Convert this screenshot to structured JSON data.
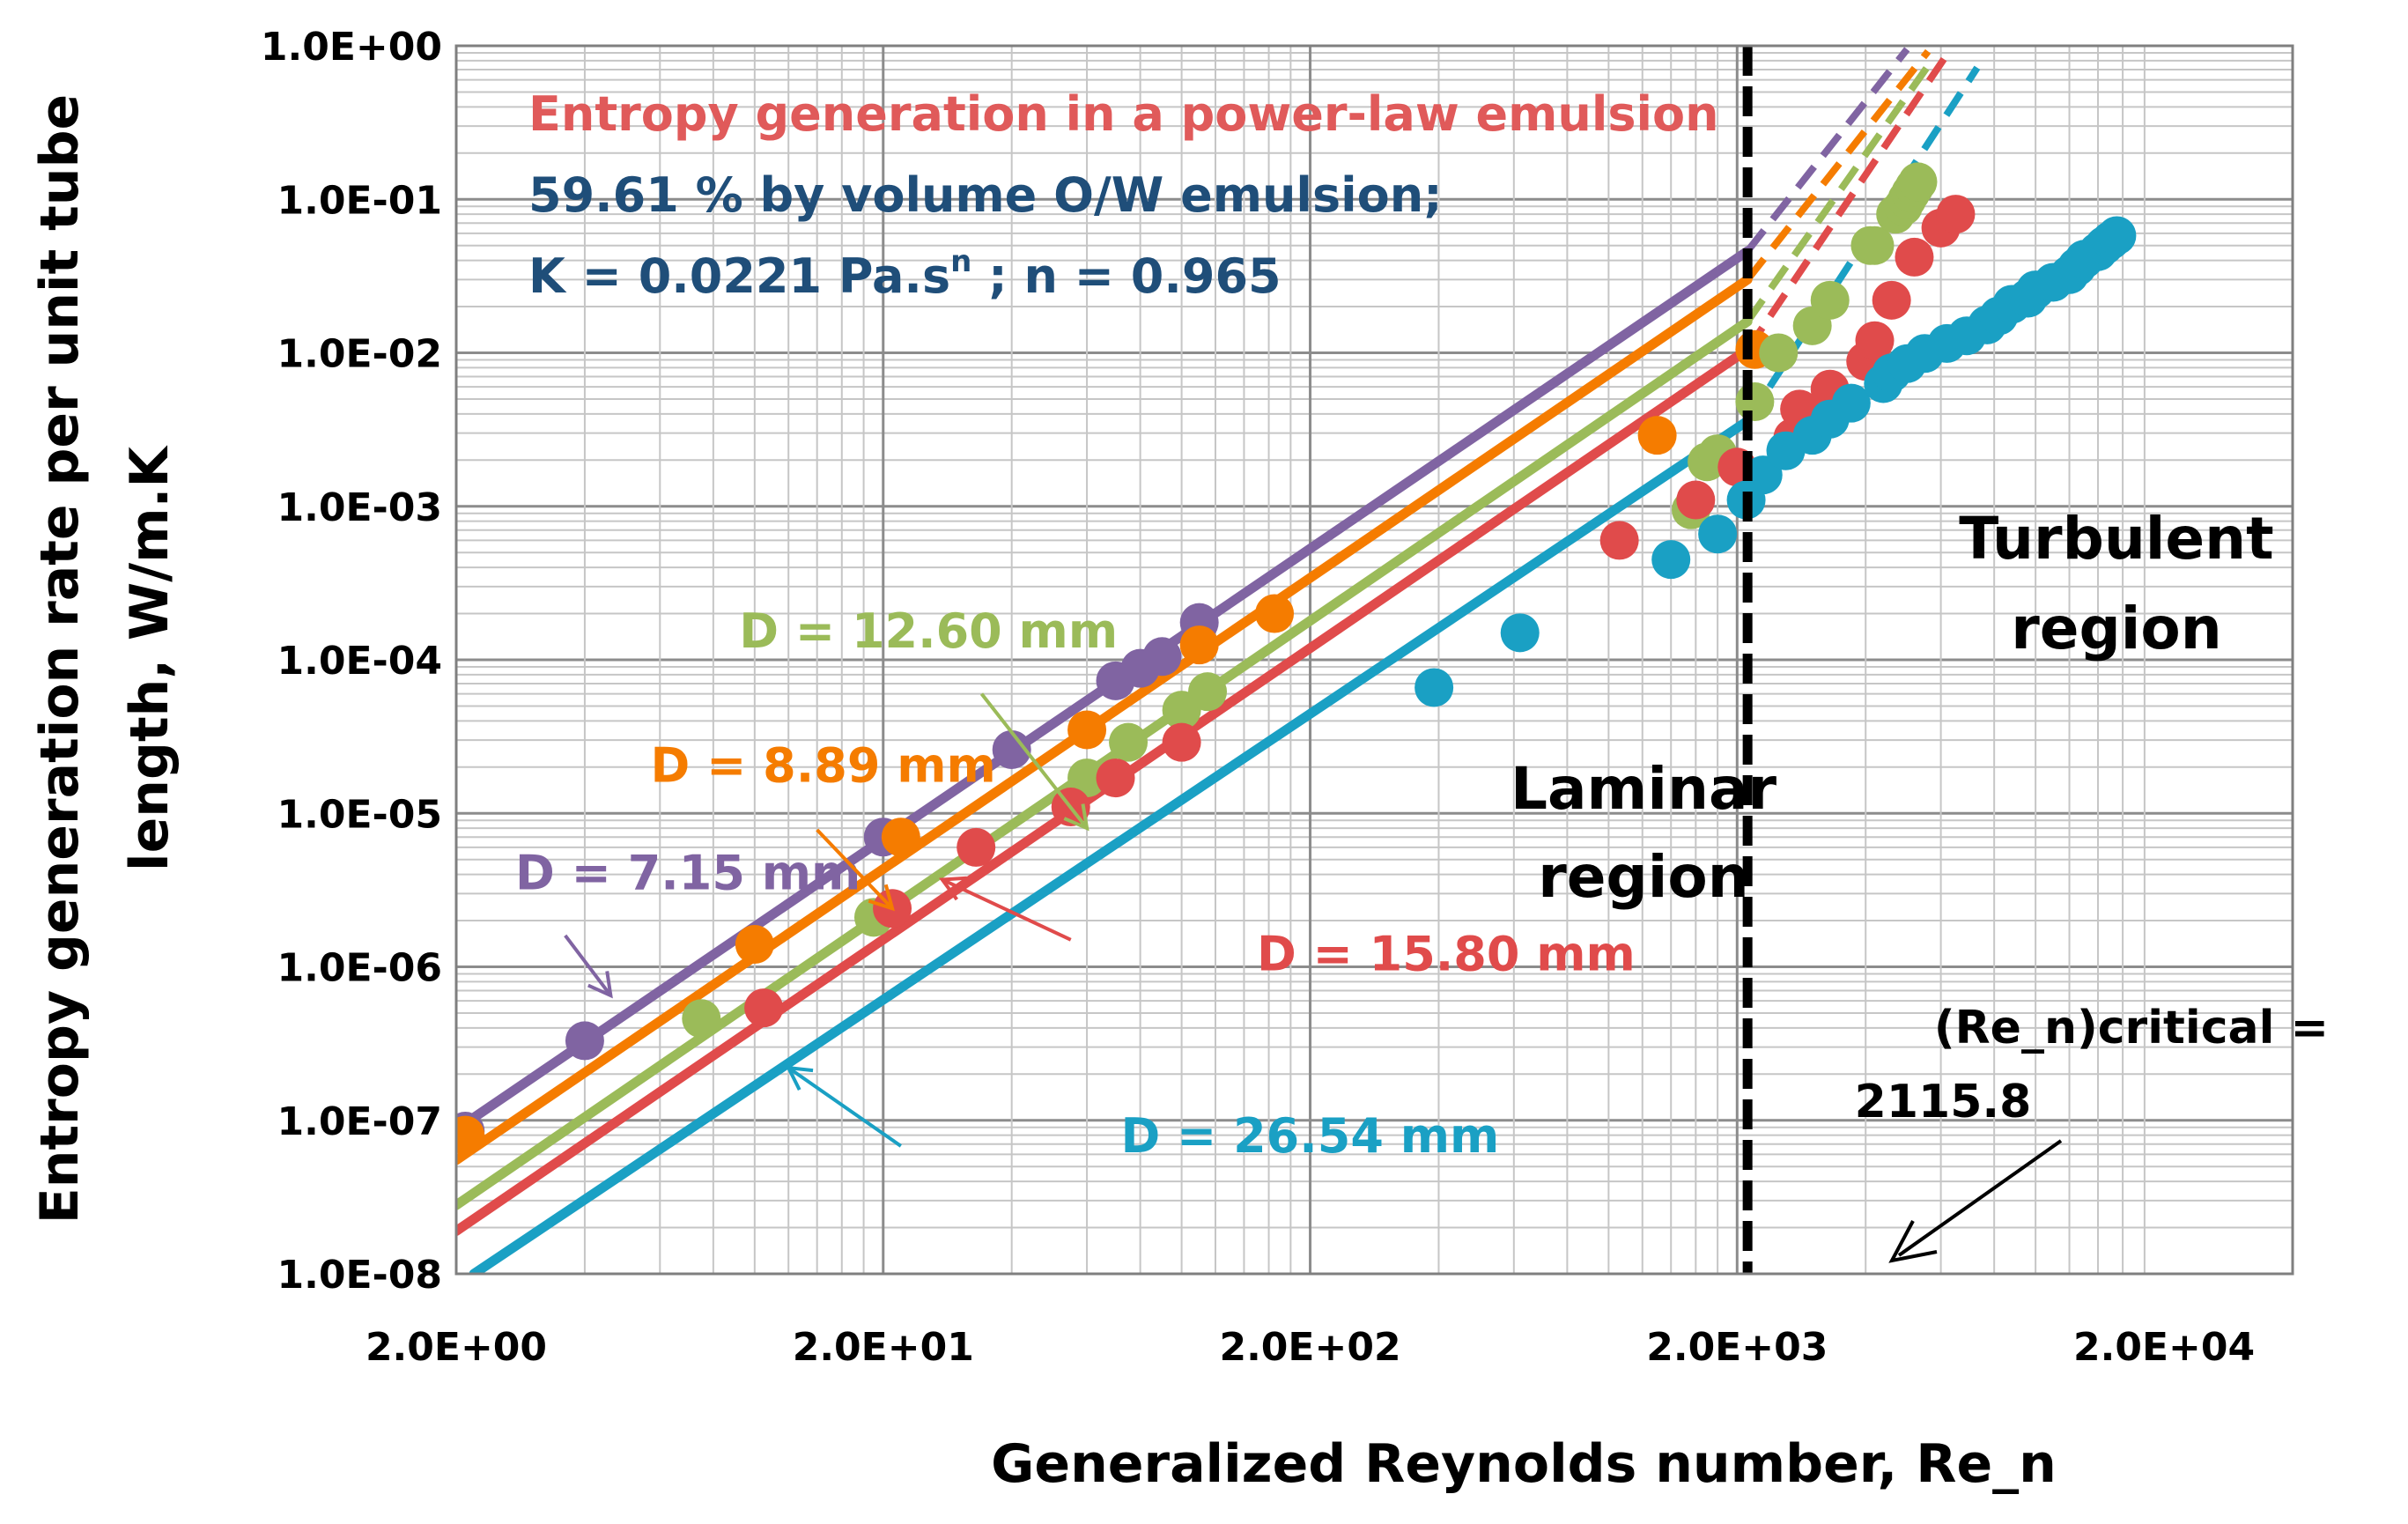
{
  "chart_data": {
    "type": "scatter",
    "title_lines": [
      {
        "text": "Entropy generation in a power-law emulsion",
        "color": "#e05a5a"
      },
      {
        "text": "59.61 % by volume O/W emulsion;",
        "color": "#1f4e79"
      },
      {
        "text": "K = 0.0221 Pa.s",
        "sup": "n",
        "suffix": "  ;  n = 0.965",
        "color": "#1f4e79"
      }
    ],
    "xlabel": "Generalized Reynolds number, Re_n",
    "ylabel_lines": [
      "Entropy generation rate per unit tube",
      "length, W/m.K"
    ],
    "x_scale": "log",
    "y_scale": "log",
    "xlim": [
      2,
      40000
    ],
    "ylim": [
      1e-08,
      1
    ],
    "x_ticks": [
      {
        "value": 2,
        "label": "2.0E+00"
      },
      {
        "value": 20,
        "label": "2.0E+01"
      },
      {
        "value": 200,
        "label": "2.0E+02"
      },
      {
        "value": 2000,
        "label": "2.0E+03"
      },
      {
        "value": 20000,
        "label": "2.0E+04"
      }
    ],
    "y_ticks": [
      {
        "value": 1,
        "label": "1.0E+00"
      },
      {
        "value": 0.1,
        "label": "1.0E-01"
      },
      {
        "value": 0.01,
        "label": "1.0E-02"
      },
      {
        "value": 0.001,
        "label": "1.0E-03"
      },
      {
        "value": 0.0001,
        "label": "1.0E-04"
      },
      {
        "value": 1e-05,
        "label": "1.0E-05"
      },
      {
        "value": 1e-06,
        "label": "1.0E-06"
      },
      {
        "value": 1e-07,
        "label": "1.0E-07"
      },
      {
        "value": 1e-08,
        "label": "1.0E-08"
      }
    ],
    "grid": true,
    "legend": "none",
    "critical_Re": {
      "value": 2115.8,
      "label_lines": [
        "(Re_n)critical =",
        "2115.8"
      ]
    },
    "regions": {
      "laminar": [
        "Laminar",
        "region"
      ],
      "turbulent": [
        "Turbulent",
        "region"
      ]
    },
    "series": [
      {
        "label": "D = 7.15 mm",
        "color": "#8064a2",
        "line_laminar": [
          [
            2,
            8.7e-08
          ],
          [
            2115.8,
            0.046
          ]
        ],
        "line_turbulent": [
          [
            2115.8,
            0.046
          ],
          [
            5000,
            0.95
          ]
        ],
        "points": [
          [
            2.1,
            8.5e-08
          ],
          [
            4,
            3.3e-07
          ],
          [
            20,
            7e-06
          ],
          [
            40,
            2.6e-05
          ],
          [
            70,
            7.3e-05
          ],
          [
            80,
            8.8e-05
          ],
          [
            90,
            0.000105
          ],
          [
            110,
            0.000175
          ]
        ],
        "label_anchor": [
          2.75,
          3.2e-06
        ],
        "arrow": [
          [
            3.6,
            1.6e-06
          ],
          [
            4.6,
            6.5e-07
          ]
        ]
      },
      {
        "label": "D = 8.89 mm",
        "color": "#f57c00",
        "line_laminar": [
          [
            2,
            5.5e-08
          ],
          [
            2115.8,
            0.03
          ]
        ],
        "line_turbulent": [
          [
            2115.8,
            0.03
          ],
          [
            5600,
            0.92
          ]
        ],
        "points": [
          [
            2.1,
            8e-08
          ],
          [
            10,
            1.4e-06
          ],
          [
            22,
            7e-06
          ],
          [
            60,
            3.5e-05
          ],
          [
            110,
            0.000125
          ],
          [
            165,
            0.0002
          ],
          [
            1300,
            0.0029
          ],
          [
            2200,
            0.0105
          ]
        ],
        "label_anchor": [
          5.7,
          1.6e-05
        ],
        "arrow": [
          [
            14,
            7.8e-06
          ],
          [
            21,
            2.4e-06
          ]
        ]
      },
      {
        "label": "D = 12.60 mm",
        "color": "#9bbb59",
        "line_laminar": [
          [
            2,
            2.8e-08
          ],
          [
            2115.8,
            0.016
          ]
        ],
        "line_turbulent": [
          [
            2115.8,
            0.016
          ],
          [
            5800,
            0.85
          ]
        ],
        "points": [
          [
            7.5,
            4.6e-07
          ],
          [
            19,
            2.1e-06
          ],
          [
            60,
            1.7e-05
          ],
          [
            75,
            2.9e-05
          ],
          [
            100,
            4.7e-05
          ],
          [
            115,
            6.2e-05
          ],
          [
            1560,
            0.00095
          ],
          [
            1700,
            0.00195
          ],
          [
            1800,
            0.0022
          ],
          [
            2200,
            0.0048
          ],
          [
            2500,
            0.01
          ],
          [
            3000,
            0.015
          ],
          [
            3300,
            0.022
          ],
          [
            4100,
            0.05
          ],
          [
            4200,
            0.05
          ],
          [
            4700,
            0.08
          ],
          [
            4900,
            0.09
          ],
          [
            5000,
            0.1
          ],
          [
            5100,
            0.11
          ],
          [
            5200,
            0.12
          ],
          [
            5300,
            0.13
          ]
        ],
        "label_anchor": [
          9.2,
          0.00012
        ],
        "arrow": [
          [
            34,
            6e-05
          ],
          [
            60,
            8e-06
          ]
        ]
      },
      {
        "label": "D = 15.80 mm",
        "color": "#e04b4b",
        "line_laminar": [
          [
            2,
            1.9e-08
          ],
          [
            2115.8,
            0.0105
          ]
        ],
        "line_turbulent": [
          [
            2115.8,
            0.0105
          ],
          [
            6100,
            0.82
          ]
        ],
        "points": [
          [
            10.5,
            5.4e-07
          ],
          [
            21,
            2.4e-06
          ],
          [
            33,
            6e-06
          ],
          [
            55,
            1.1e-05
          ],
          [
            70,
            1.7e-05
          ],
          [
            100,
            2.9e-05
          ],
          [
            1060,
            0.0006
          ],
          [
            1600,
            0.0011
          ],
          [
            2000,
            0.0018
          ],
          [
            2700,
            0.0028
          ],
          [
            2800,
            0.0043
          ],
          [
            3300,
            0.0058
          ],
          [
            4000,
            0.0088
          ],
          [
            4200,
            0.012
          ],
          [
            4600,
            0.022
          ],
          [
            5200,
            0.042
          ],
          [
            6000,
            0.065
          ],
          [
            6500,
            0.08
          ]
        ],
        "label_anchor": [
          150,
          9.5e-07
        ],
        "arrow": [
          [
            55,
            1.5e-06
          ],
          [
            27.5,
            3.7e-06
          ]
        ]
      },
      {
        "label": "D = 26.54 mm",
        "color": "#1aa0c4",
        "line_laminar": [
          [
            2.2,
            1e-08
          ],
          [
            2115.8,
            0.0036
          ]
        ],
        "line_turbulent": [
          [
            2115.8,
            0.0036
          ],
          [
            7300,
            0.72
          ]
        ],
        "points": [
          [
            390,
            6.6e-05
          ],
          [
            620,
            0.00015
          ],
          [
            1400,
            0.00045
          ],
          [
            1800,
            0.00066
          ],
          [
            2100,
            0.0011
          ],
          [
            2300,
            0.0016
          ],
          [
            2600,
            0.0023
          ],
          [
            3000,
            0.0029
          ],
          [
            3300,
            0.0037
          ],
          [
            3700,
            0.0047
          ],
          [
            4400,
            0.0063
          ],
          [
            4600,
            0.0074
          ],
          [
            5000,
            0.0085
          ],
          [
            5500,
            0.0099
          ],
          [
            6200,
            0.0115
          ],
          [
            6900,
            0.0129
          ],
          [
            7700,
            0.0152
          ],
          [
            8200,
            0.0174
          ],
          [
            8800,
            0.0207
          ],
          [
            9600,
            0.0227
          ],
          [
            10000,
            0.0257
          ],
          [
            11000,
            0.0288
          ],
          [
            12000,
            0.0323
          ],
          [
            12500,
            0.0363
          ],
          [
            13000,
            0.0407
          ],
          [
            14000,
            0.0456
          ],
          [
            14500,
            0.05
          ],
          [
            15000,
            0.054
          ],
          [
            15500,
            0.058
          ]
        ],
        "label_anchor": [
          72,
          6.2e-08
        ],
        "arrow": [
          [
            22,
            6.8e-08
          ],
          [
            12,
            2.2e-07
          ]
        ]
      }
    ]
  }
}
